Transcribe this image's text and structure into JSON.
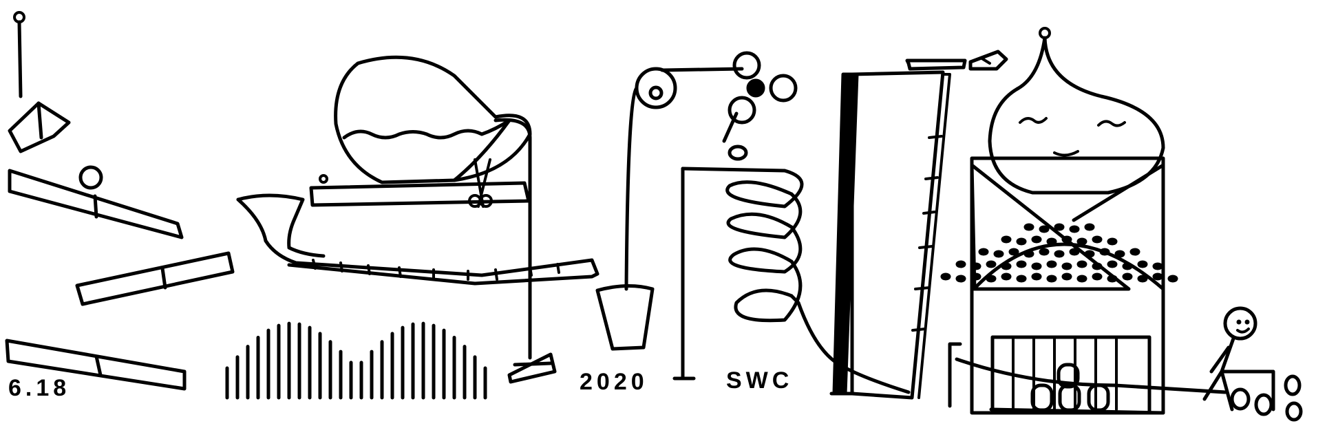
{
  "labels": {
    "date": "6.18",
    "year": "2020",
    "initials": "SWC"
  },
  "colors": {
    "ink": "#000000",
    "paper": "#ffffff"
  }
}
